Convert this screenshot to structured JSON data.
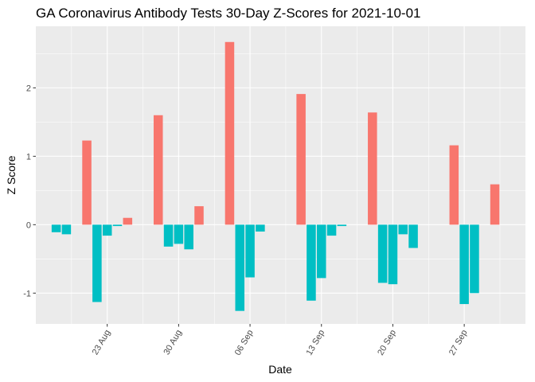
{
  "chart_data": {
    "type": "bar",
    "title": "GA Coronavirus Antibody Tests 30-Day Z-Scores for 2021-10-01",
    "xlabel": "Date",
    "ylabel": "Z Score",
    "ylim": [
      -1.45,
      2.9
    ],
    "xlim": [
      "2021-08-16",
      "2021-10-03"
    ],
    "y_ticks": [
      -1,
      0,
      1,
      2
    ],
    "y_tick_labels": [
      "-1",
      "0",
      "1",
      "2"
    ],
    "x_ticks": [
      "2021-08-23",
      "2021-08-30",
      "2021-09-06",
      "2021-09-13",
      "2021-09-20",
      "2021-09-27"
    ],
    "x_tick_labels": [
      "23 Aug",
      "30 Aug",
      "06 Sep",
      "13 Sep",
      "20 Sep",
      "27 Sep"
    ],
    "grid": true,
    "legend": "none",
    "colors": {
      "positive": "#F8766D",
      "negative": "#00BFC4",
      "panel": "#EBEBEB",
      "grid": "#FFFFFF"
    },
    "x": [
      "2021-08-18",
      "2021-08-19",
      "2021-08-20",
      "2021-08-21",
      "2021-08-22",
      "2021-08-23",
      "2021-08-24",
      "2021-08-25",
      "2021-08-26",
      "2021-08-27",
      "2021-08-28",
      "2021-08-29",
      "2021-08-30",
      "2021-08-31",
      "2021-09-01",
      "2021-09-02",
      "2021-09-03",
      "2021-09-04",
      "2021-09-05",
      "2021-09-06",
      "2021-09-07",
      "2021-09-08",
      "2021-09-09",
      "2021-09-10",
      "2021-09-11",
      "2021-09-12",
      "2021-09-13",
      "2021-09-14",
      "2021-09-15",
      "2021-09-16",
      "2021-09-17",
      "2021-09-18",
      "2021-09-19",
      "2021-09-20",
      "2021-09-21",
      "2021-09-22",
      "2021-09-23",
      "2021-09-24",
      "2021-09-25",
      "2021-09-26",
      "2021-09-27",
      "2021-09-28",
      "2021-09-29",
      "2021-09-30",
      "2021-10-01"
    ],
    "values": [
      -0.11,
      -0.14,
      null,
      1.23,
      -1.13,
      -0.16,
      -0.02,
      0.1,
      null,
      null,
      1.6,
      -0.32,
      -0.28,
      -0.36,
      0.27,
      null,
      null,
      2.67,
      -1.26,
      -0.77,
      -0.1,
      null,
      null,
      null,
      1.91,
      -1.11,
      -0.78,
      -0.16,
      -0.02,
      null,
      null,
      1.64,
      -0.85,
      -0.87,
      -0.14,
      -0.34,
      null,
      null,
      null,
      1.16,
      -1.16,
      -1.0,
      null,
      0.59,
      null
    ]
  }
}
